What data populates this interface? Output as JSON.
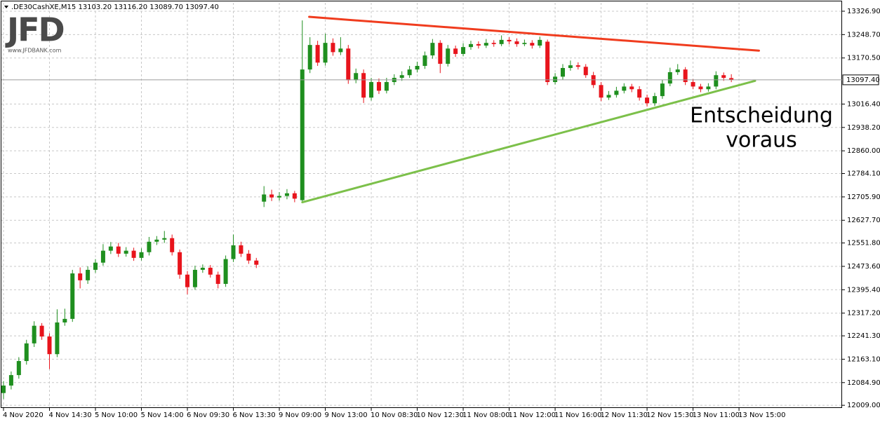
{
  "chart_data": {
    "type": "candlestick",
    "title": ".DE30CashXE,M15  13103.20 13116.20 13089.70 13097.40",
    "logo": {
      "text": "JFD",
      "subtext": "www.JFDBANK.com"
    },
    "categories": [
      "4 Nov 2020",
      null,
      null,
      null,
      null,
      null,
      "4 Nov 14:30",
      null,
      null,
      null,
      null,
      null,
      "5 Nov 10:00",
      null,
      null,
      null,
      null,
      null,
      "5 Nov 14:00",
      null,
      null,
      null,
      null,
      null,
      "6 Nov 09:30",
      null,
      null,
      null,
      null,
      null,
      "6 Nov 13:30",
      null,
      null,
      null,
      null,
      null,
      "9 Nov 09:00",
      null,
      null,
      null,
      null,
      null,
      "9 Nov 13:00",
      null,
      null,
      null,
      null,
      null,
      "10 Nov 08:30",
      null,
      null,
      null,
      null,
      null,
      "10 Nov 12:30",
      null,
      null,
      null,
      null,
      null,
      "11 Nov 08:00",
      null,
      null,
      null,
      null,
      null,
      "11 Nov 12:00",
      null,
      null,
      null,
      null,
      null,
      "11 Nov 16:00",
      null,
      null,
      null,
      null,
      null,
      "12 Nov 11:30",
      null,
      null,
      null,
      null,
      null,
      "12 Nov 15:30",
      null,
      null,
      null,
      null,
      null,
      "13 Nov 11:00",
      null,
      null,
      null,
      null,
      null,
      "13 Nov 15:00",
      null,
      null,
      null,
      null,
      null,
      null,
      null,
      null,
      null,
      null,
      null,
      null,
      null
    ],
    "open": [
      12050,
      12075,
      12110,
      12157,
      12216,
      12275,
      12239,
      12180,
      12286,
      12298,
      12450,
      12427,
      12462,
      12486,
      12526,
      12540,
      12516,
      12526,
      12502,
      12521,
      12556,
      12563,
      12568,
      12521,
      12446,
      12404,
      12462,
      12469,
      12446,
      12415,
      12498,
      12544,
      12516,
      12493,
      12690,
      12714,
      12704,
      12709,
      12718,
      12695,
      13132,
      13214,
      13155,
      13221,
      13190,
      13202,
      13096,
      13120,
      13038,
      13090,
      13061,
      13090,
      13104,
      13113,
      13132,
      13144,
      13179,
      13221,
      13151,
      13202,
      13184,
      13207,
      13217,
      13212,
      13221,
      13217,
      13231,
      13226,
      13217,
      13221,
      13212,
      13225,
      13090,
      13108,
      13137,
      13146,
      13141,
      13113,
      13080,
      13038,
      13047,
      13061,
      13075,
      13066,
      13038,
      13019,
      13043,
      13085,
      13123,
      13132,
      13090,
      13075,
      13066,
      13075,
      13113,
      13103.2,
      null,
      null,
      null,
      null,
      null,
      null,
      null,
      null,
      null,
      null,
      null,
      null,
      null,
      null
    ],
    "high": [
      12090,
      12122,
      12170,
      12228,
      12290,
      12284,
      12250,
      12330,
      12332,
      12462,
      12470,
      12474,
      12498,
      12548,
      12555,
      12552,
      12538,
      12536,
      12534,
      12572,
      12575,
      12592,
      12580,
      12530,
      12458,
      12476,
      12480,
      12478,
      12456,
      12510,
      12580,
      12556,
      12528,
      12502,
      12742,
      12730,
      12722,
      12732,
      12726,
      13296,
      13240,
      13228,
      13252,
      13236,
      13240,
      13214,
      13135,
      13132,
      13104,
      13102,
      13104,
      13116,
      13126,
      13144,
      13158,
      13192,
      13234,
      13230,
      13214,
      13212,
      13220,
      13228,
      13226,
      13234,
      13230,
      13246,
      13240,
      13236,
      13232,
      13230,
      13242,
      13232,
      13120,
      13150,
      13162,
      13156,
      13150,
      13124,
      13090,
      13060,
      13074,
      13086,
      13084,
      13076,
      13048,
      13054,
      13098,
      13138,
      13150,
      13140,
      13100,
      13084,
      13086,
      13126,
      13122,
      13116.2,
      null,
      null,
      null,
      null,
      null,
      null,
      null,
      null,
      null,
      null,
      null,
      null,
      null,
      null
    ],
    "low": [
      12030,
      12062,
      12098,
      12145,
      12204,
      12228,
      12130,
      12170,
      12275,
      12288,
      12400,
      12415,
      12452,
      12476,
      12515,
      12505,
      12506,
      12492,
      12493,
      12510,
      12545,
      12552,
      12510,
      12432,
      12380,
      12395,
      12452,
      12436,
      12400,
      12405,
      12488,
      12505,
      12482,
      12468,
      12672,
      12692,
      12694,
      12698,
      12688,
      12688,
      13120,
      13144,
      13145,
      13178,
      13180,
      13084,
      13086,
      13020,
      13028,
      13050,
      13052,
      13080,
      13094,
      13104,
      13122,
      13134,
      13168,
      13120,
      13142,
      13174,
      13176,
      13198,
      13202,
      13204,
      13208,
      13210,
      13216,
      13208,
      13210,
      13202,
      13204,
      13080,
      13082,
      13098,
      13128,
      13132,
      13104,
      13070,
      13026,
      13030,
      13038,
      13052,
      13056,
      13028,
      13008,
      13010,
      13034,
      13076,
      13114,
      13080,
      13066,
      13056,
      13058,
      13066,
      13094,
      13089.7,
      null,
      null,
      null,
      null,
      null,
      null,
      null,
      null,
      null,
      null,
      null,
      null,
      null,
      null
    ],
    "close": [
      12075,
      12110,
      12157,
      12216,
      12275,
      12239,
      12180,
      12286,
      12298,
      12450,
      12427,
      12462,
      12486,
      12526,
      12540,
      12516,
      12526,
      12502,
      12521,
      12556,
      12563,
      12568,
      12521,
      12446,
      12404,
      12462,
      12469,
      12446,
      12415,
      12498,
      12544,
      12516,
      12493,
      12479,
      12714,
      12704,
      12709,
      12718,
      12700,
      13132,
      13214,
      13155,
      13221,
      13190,
      13202,
      13096,
      13120,
      13038,
      13090,
      13061,
      13090,
      13104,
      13113,
      13132,
      13144,
      13179,
      13221,
      13151,
      13202,
      13184,
      13207,
      13217,
      13212,
      13221,
      13217,
      13231,
      13226,
      13217,
      13221,
      13212,
      13231,
      13090,
      13108,
      13137,
      13146,
      13141,
      13113,
      13080,
      13038,
      13047,
      13061,
      13075,
      13066,
      13038,
      13019,
      13043,
      13085,
      13123,
      13132,
      13090,
      13075,
      13066,
      13075,
      13113,
      13104,
      13097.4,
      null,
      null,
      null,
      null,
      null,
      null,
      null,
      null,
      null,
      null,
      null,
      null,
      null,
      null
    ],
    "up_color": "#1f8f1f",
    "down_color": "#e8141c",
    "ylim": [
      12000,
      13355
    ],
    "yticks": [
      {
        "value": 13326.9,
        "label": "13326.90"
      },
      {
        "value": 13248.7,
        "label": "13248.70"
      },
      {
        "value": 13170.5,
        "label": "13170.50"
      },
      {
        "value": 13016.4,
        "label": "13016.40"
      },
      {
        "value": 12938.2,
        "label": "12938.20"
      },
      {
        "value": 12860,
        "label": "12860.00"
      },
      {
        "value": 12784.1,
        "label": "12784.10"
      },
      {
        "value": 12705.9,
        "label": "12705.90"
      },
      {
        "value": 12627.7,
        "label": "12627.70"
      },
      {
        "value": 12551.8,
        "label": "12551.80"
      },
      {
        "value": 12473.6,
        "label": "12473.60"
      },
      {
        "value": 12395.4,
        "label": "12395.40"
      },
      {
        "value": 12317.2,
        "label": "12317.20"
      },
      {
        "value": 12241.3,
        "label": "12241.30"
      },
      {
        "value": 12163.1,
        "label": "12163.10"
      },
      {
        "value": 12084.9,
        "label": "12084.90"
      },
      {
        "value": 12009,
        "label": "12009.00"
      }
    ],
    "grid": true,
    "last_price": {
      "value": 13097.4,
      "label": "13097.40"
    },
    "trendlines": [
      {
        "color": "#f03c1e",
        "points": [
          [
            39.9,
            13308
          ],
          [
            98.6,
            13195
          ]
        ]
      },
      {
        "color": "#7cc04a",
        "points": [
          [
            39,
            12688
          ],
          [
            98.1,
            13094
          ]
        ]
      }
    ],
    "annotation": [
      "Entscheidung",
      "voraus"
    ]
  }
}
